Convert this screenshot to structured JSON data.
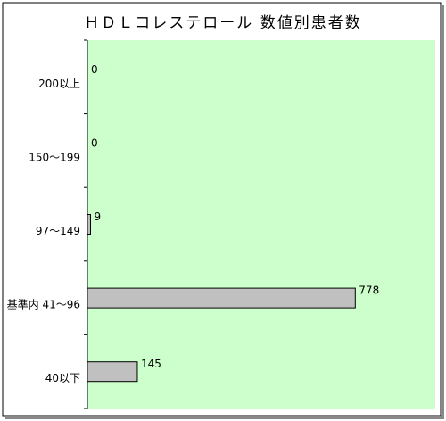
{
  "chart_data": {
    "type": "bar",
    "orientation": "horizontal",
    "title": "ＨＤＬコレステロール 数値別患者数",
    "categories": [
      "200以上",
      "150～199",
      "97～149",
      "基準内 41～96",
      "40以下"
    ],
    "values": [
      0,
      0,
      9,
      778,
      145
    ],
    "color": "#c0c0c0",
    "background": "#ccffcc",
    "xlim": [
      0,
      1000
    ]
  }
}
